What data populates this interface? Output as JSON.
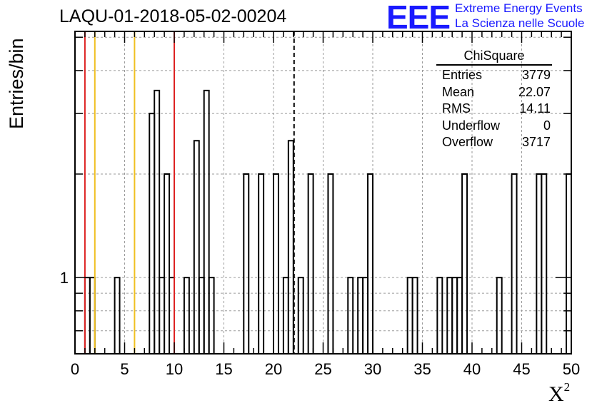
{
  "title": "LAQU-01-2018-05-02-00204",
  "logo": {
    "mark": "EEE",
    "line1": "Extreme Energy Events",
    "line2": "La Scienza nelle Scuole",
    "color": "#1a1aff"
  },
  "stats_box": {
    "title": "ChiSquare",
    "rows": [
      {
        "label": "Entries",
        "value": "3779"
      },
      {
        "label": "Mean",
        "value": "22.07"
      },
      {
        "label": "RMS",
        "value": "14.11"
      },
      {
        "label": "Underflow",
        "value": "0"
      },
      {
        "label": "Overflow",
        "value": "3717"
      }
    ]
  },
  "chart_data": {
    "type": "bar",
    "histogram_style": "step",
    "ylabel": "Entries/bin",
    "xlabel": "X",
    "xlabel_superscript": "2",
    "xlim": [
      0,
      50
    ],
    "xticks": [
      "0",
      "5",
      "10",
      "15",
      "20",
      "25",
      "30",
      "35",
      "40",
      "45",
      "50"
    ],
    "y_scale": "log",
    "ylim": [
      0.6,
      5.2
    ],
    "yticks": [
      "1"
    ],
    "grid": true,
    "bin_width": 0.5,
    "bins": [
      {
        "x": 1.0,
        "y": 1
      },
      {
        "x": 1.5,
        "y": 1
      },
      {
        "x": 4.0,
        "y": 1
      },
      {
        "x": 7.5,
        "y": 3
      },
      {
        "x": 8.0,
        "y": 3.5
      },
      {
        "x": 8.5,
        "y": 1
      },
      {
        "x": 9.0,
        "y": 2
      },
      {
        "x": 9.5,
        "y": 1
      },
      {
        "x": 11.0,
        "y": 1
      },
      {
        "x": 12.0,
        "y": 2.5
      },
      {
        "x": 12.5,
        "y": 1
      },
      {
        "x": 13.0,
        "y": 3.5
      },
      {
        "x": 13.5,
        "y": 1
      },
      {
        "x": 17.0,
        "y": 2
      },
      {
        "x": 18.5,
        "y": 2
      },
      {
        "x": 20.0,
        "y": 2
      },
      {
        "x": 21.0,
        "y": 1
      },
      {
        "x": 21.5,
        "y": 2.5
      },
      {
        "x": 22.5,
        "y": 1
      },
      {
        "x": 23.5,
        "y": 2
      },
      {
        "x": 25.5,
        "y": 2
      },
      {
        "x": 27.5,
        "y": 1
      },
      {
        "x": 28.5,
        "y": 1
      },
      {
        "x": 29.0,
        "y": 1
      },
      {
        "x": 29.5,
        "y": 2
      },
      {
        "x": 33.5,
        "y": 1
      },
      {
        "x": 34.0,
        "y": 1
      },
      {
        "x": 36.5,
        "y": 1
      },
      {
        "x": 37.5,
        "y": 1
      },
      {
        "x": 38.0,
        "y": 1
      },
      {
        "x": 38.5,
        "y": 1
      },
      {
        "x": 39.0,
        "y": 2
      },
      {
        "x": 42.5,
        "y": 1
      },
      {
        "x": 44.0,
        "y": 2
      },
      {
        "x": 46.5,
        "y": 2
      },
      {
        "x": 47.0,
        "y": 2
      },
      {
        "x": 49.5,
        "y": 2
      }
    ],
    "reference_lines": [
      {
        "x": 1,
        "color": "#dd2222",
        "style": "solid"
      },
      {
        "x": 2,
        "color": "#f0c020",
        "style": "solid"
      },
      {
        "x": 6,
        "color": "#f0c020",
        "style": "solid"
      },
      {
        "x": 10,
        "color": "#dd2222",
        "style": "solid"
      },
      {
        "x": 22.07,
        "color": "#000000",
        "style": "dashed"
      }
    ]
  }
}
